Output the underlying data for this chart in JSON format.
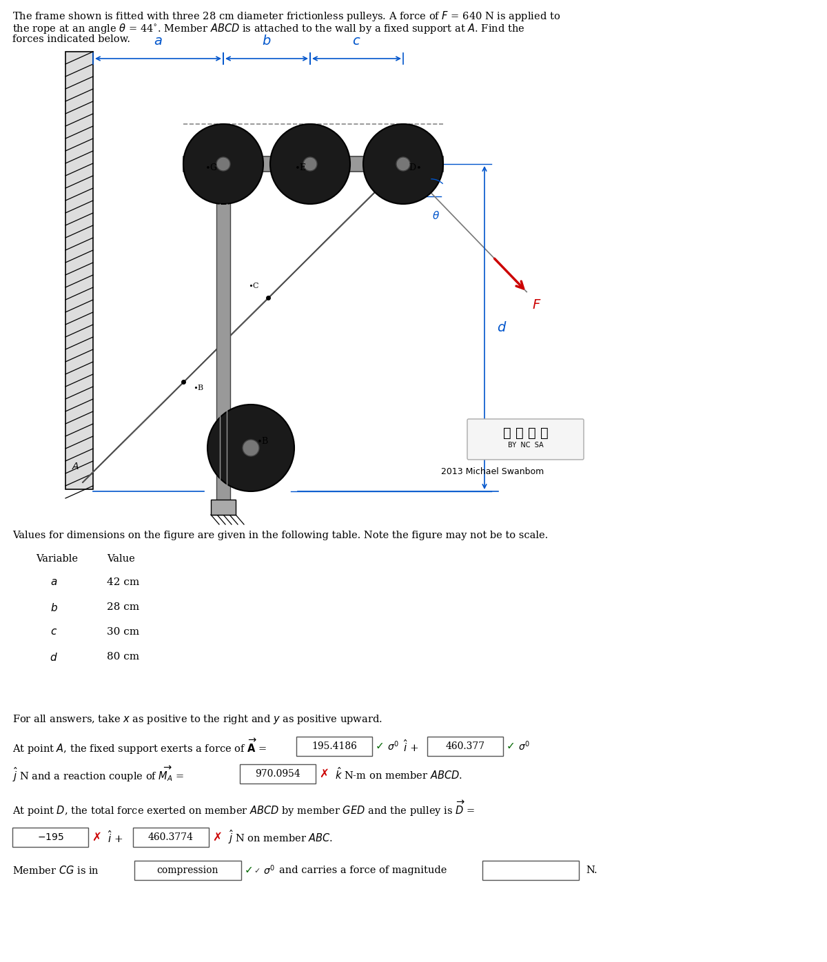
{
  "fig_width": 12.0,
  "fig_height": 13.96,
  "bg_color": "#ffffff",
  "blue": "#0055cc",
  "red": "#cc0000",
  "dark_gray": "#1a1a1a",
  "mid_gray": "#888888",
  "light_gray": "#b8b8b8",
  "bar_gray": "#999999",
  "wall_gray": "#cccccc",
  "problem_text_line1": "The frame shown is fitted with three 28 cm diameter frictionless pulleys. A force of $F$ = 640 N is applied to",
  "problem_text_line2": "the rope at an angle $\\theta$ = 44$^{\\circ}$. Member $ABCD$ is attached to the wall by a fixed support at $A$. Find the",
  "problem_text_line3": "forces indicated below.",
  "table_note": "Values for dimensions on the figure are given in the following table. Note the figure may not be to scale.",
  "var_header": "Variable",
  "val_header": "Value",
  "rows": [
    [
      "a",
      "42 cm"
    ],
    [
      "b",
      "28 cm"
    ],
    [
      "c",
      "30 cm"
    ],
    [
      "d",
      "80 cm"
    ]
  ],
  "ans_intro": "For all answers, take $x$ as positive to the right and $y$ as positive upward.",
  "line1_text": "At point $A$, the fixed support exerts a force of $\\overrightarrow{\\mathbf{A}}$ =",
  "box1_val": "195.4186",
  "box2_val": "460.377",
  "line2_text": "$\\hat{j}$ N and a reaction couple of $\\overrightarrow{M_A}$ =",
  "box3_val": "970.0954",
  "line3_text": "At point $D$, the total force exerted on member $ABCD$ by member $GED$ and the pulley is $\\overrightarrow{D}$ =",
  "box4_val": "$-195$",
  "box5_val": "460.3774",
  "line5_text": "Member $CG$ is in",
  "box6_val": "compression",
  "line5_end": "and carries a force of magnitude",
  "box7_val": "",
  "end_N": "N."
}
